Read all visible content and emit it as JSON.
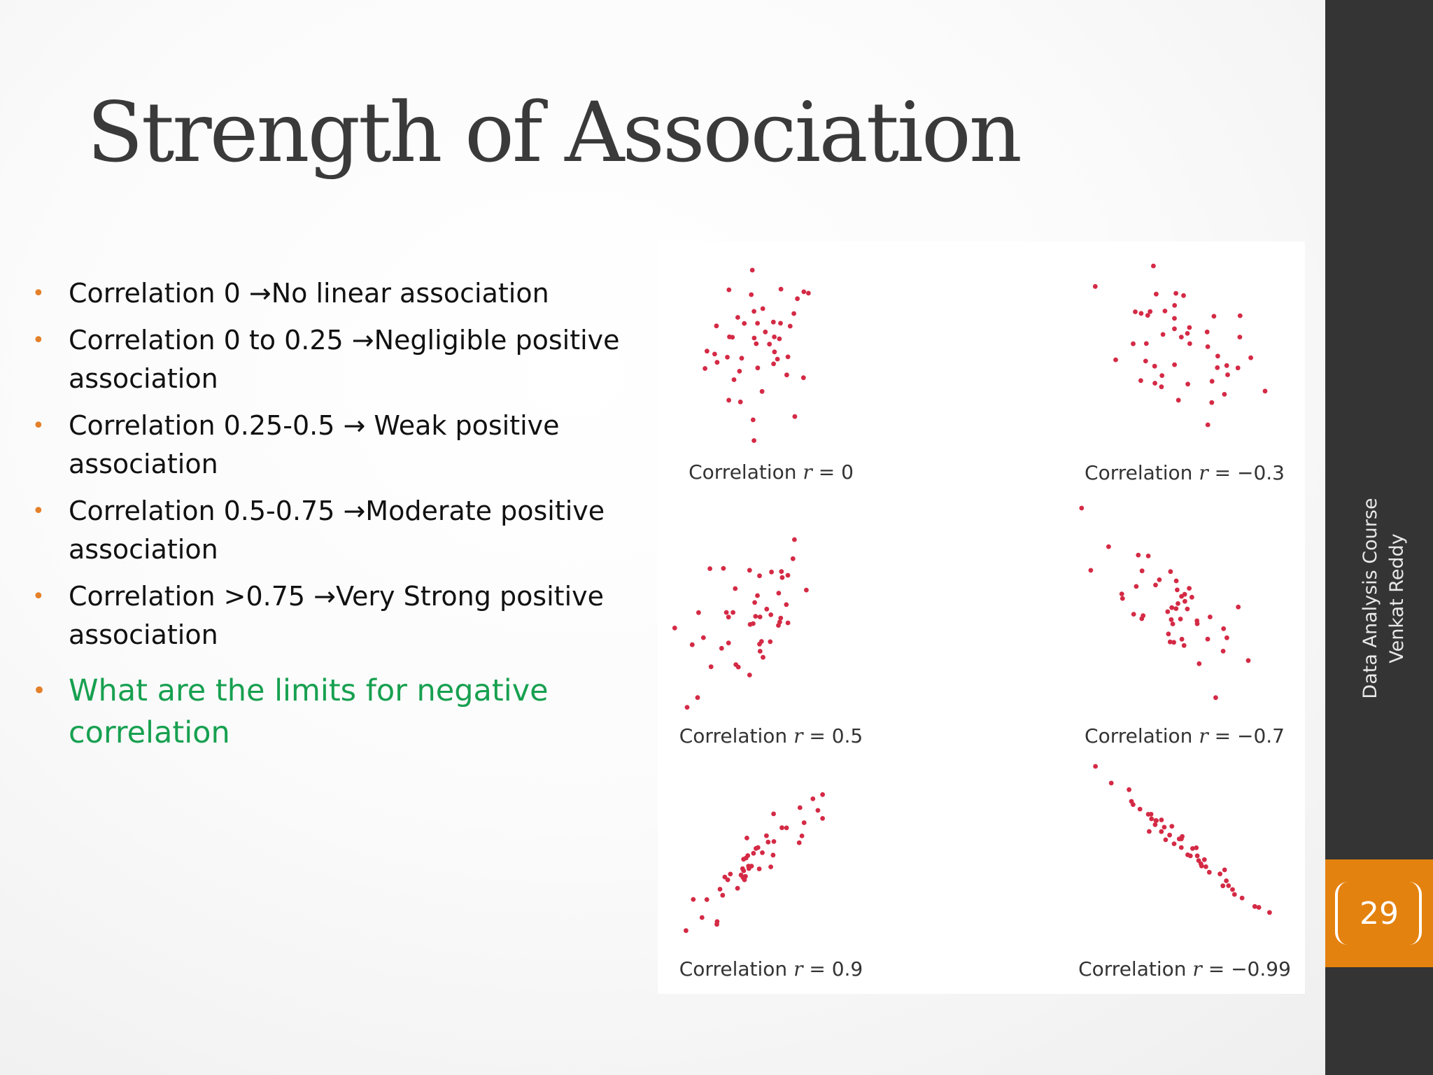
{
  "slide": {
    "title": "Strength of Association",
    "bullets": [
      {
        "text": "Correlation  0 →No linear association"
      },
      {
        "text": "Correlation  0 to 0.25  →Negligible positive association"
      },
      {
        "text": "Correlation   0.25-0.5 → Weak positive association"
      },
      {
        "text": "Correlation  0.5-0.75 →Moderate positive association"
      },
      {
        "text": "Correlation >0.75 →Very Strong positive association"
      }
    ],
    "question": "What are the limits for negative correlation",
    "sidebar": {
      "course": "Data Analysis Course",
      "author": "Venkat Reddy",
      "page_number": "29"
    },
    "colors": {
      "accent": "#e4820f",
      "dot": "#d42a45",
      "question": "#17a050",
      "sidebar": "#343434"
    }
  },
  "chart_data": [
    {
      "type": "scatter",
      "title": "Correlation r = 0",
      "caption_prefix": "Correlation",
      "r_label": "r",
      "r_value": "0",
      "r": 0
    },
    {
      "type": "scatter",
      "title": "Correlation r = −0.3",
      "caption_prefix": "Correlation",
      "r_label": "r",
      "r_value": "−0.3",
      "r": -0.3
    },
    {
      "type": "scatter",
      "title": "Correlation r = 0.5",
      "caption_prefix": "Correlation",
      "r_label": "r",
      "r_value": "0.5",
      "r": 0.5
    },
    {
      "type": "scatter",
      "title": "Correlation r = −0.7",
      "caption_prefix": "Correlation",
      "r_label": "r",
      "r_value": "−0.7",
      "r": -0.7
    },
    {
      "type": "scatter",
      "title": "Correlation r = 0.9",
      "caption_prefix": "Correlation",
      "r_label": "r",
      "r_value": "0.9",
      "r": 0.9
    },
    {
      "type": "scatter",
      "title": "Correlation r = −0.99",
      "caption_prefix": "Correlation",
      "r_label": "r",
      "r_value": "−0.99",
      "r": -0.99
    }
  ]
}
